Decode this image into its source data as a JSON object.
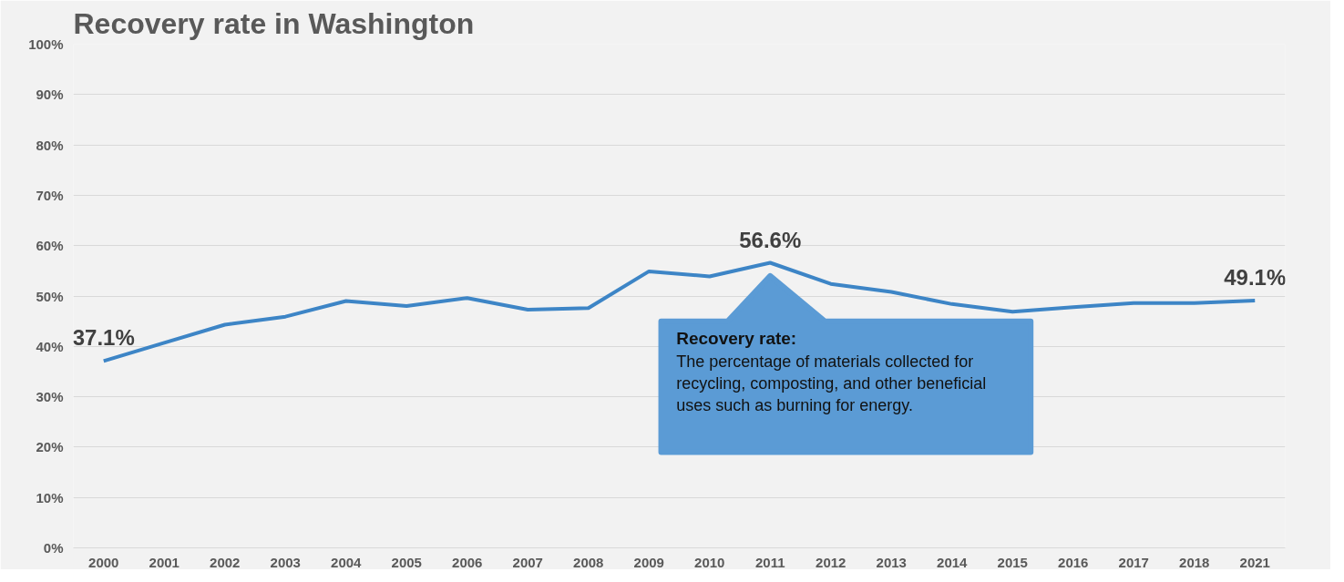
{
  "chart_data": {
    "type": "line",
    "title": "Recovery rate in Washington",
    "categories": [
      "2000",
      "2001",
      "2002",
      "2003",
      "2004",
      "2005",
      "2006",
      "2007",
      "2008",
      "2009",
      "2010",
      "2011",
      "2012",
      "2013",
      "2014",
      "2015",
      "2016",
      "2017",
      "2018",
      "2021"
    ],
    "series": [
      {
        "color": "#3d85c6",
        "values": [
          37.1,
          40.7,
          44.3,
          45.9,
          49.0,
          48.0,
          49.6,
          47.3,
          47.6,
          54.9,
          53.9,
          56.6,
          52.4,
          50.8,
          48.4,
          46.9,
          47.8,
          48.6,
          48.6,
          49.1
        ],
        "value_labels": [
          "37.1%",
          null,
          null,
          null,
          null,
          null,
          null,
          null,
          null,
          null,
          null,
          "56.6%",
          null,
          null,
          null,
          null,
          null,
          null,
          null,
          "49.1%"
        ]
      }
    ],
    "ylim": [
      0,
      100
    ],
    "yticks": [
      {
        "value": 0,
        "label": "0%"
      },
      {
        "value": 10,
        "label": "10%"
      },
      {
        "value": 20,
        "label": "20%"
      },
      {
        "value": 30,
        "label": "30%"
      },
      {
        "value": 40,
        "label": "40%"
      },
      {
        "value": 50,
        "label": "50%"
      },
      {
        "value": 60,
        "label": "60%"
      },
      {
        "value": 70,
        "label": "70%"
      },
      {
        "value": 80,
        "label": "80%"
      },
      {
        "value": 90,
        "label": "90%"
      },
      {
        "value": 100,
        "label": "100%"
      }
    ],
    "grid": "y",
    "marker": "none",
    "line_style": "solid",
    "annotations": [
      "Recovery rate:",
      "The percentage of materials collected for recycling, composting, and other beneficial uses such as burning for energy."
    ]
  }
}
